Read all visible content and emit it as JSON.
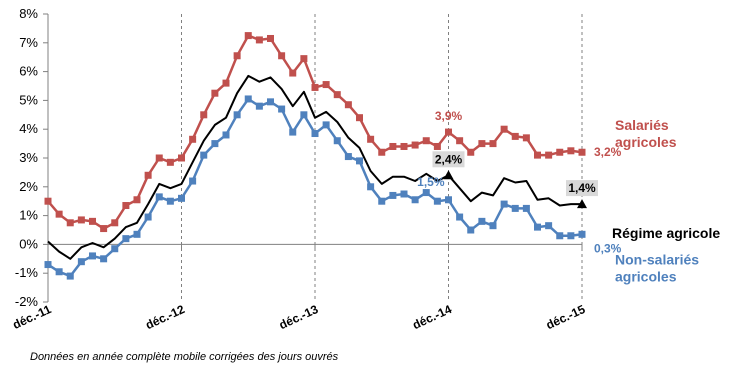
{
  "chart_data": {
    "type": "line",
    "ylim": [
      -2,
      8
    ],
    "y_ticks": [
      "8%",
      "7%",
      "6%",
      "5%",
      "4%",
      "3%",
      "2%",
      "1%",
      "0%",
      "-1%",
      "-2%"
    ],
    "y_tick_values": [
      8,
      7,
      6,
      5,
      4,
      3,
      2,
      1,
      0,
      -1,
      -2
    ],
    "x_ticks": [
      "déc.-11",
      "déc.-12",
      "déc.-13",
      "déc.-14",
      "déc.-15"
    ],
    "x_tick_index": [
      0,
      12,
      24,
      36,
      48
    ],
    "grid": "vertical dashed at x ticks",
    "series": [
      {
        "name": "Salariés agricoles",
        "color": "#c0504d",
        "marker": "square",
        "values": [
          1.5,
          1.05,
          0.75,
          0.85,
          0.8,
          0.55,
          0.75,
          1.35,
          1.55,
          2.4,
          3.0,
          2.85,
          3.0,
          3.65,
          4.5,
          5.25,
          5.6,
          6.55,
          7.25,
          7.1,
          7.15,
          6.55,
          5.95,
          6.45,
          5.45,
          5.55,
          5.2,
          4.85,
          4.4,
          3.65,
          3.2,
          3.4,
          3.4,
          3.45,
          3.6,
          3.4,
          3.9,
          3.6,
          3.2,
          3.5,
          3.5,
          4.0,
          3.75,
          3.7,
          3.1,
          3.1,
          3.2,
          3.25,
          3.2
        ]
      },
      {
        "name": "Régime agricole",
        "color": "#000000",
        "marker": "none",
        "values": [
          0.1,
          -0.25,
          -0.5,
          -0.1,
          0.05,
          -0.1,
          0.2,
          0.6,
          0.75,
          1.4,
          2.1,
          1.95,
          2.1,
          2.85,
          3.6,
          4.15,
          4.4,
          5.25,
          5.85,
          5.65,
          5.8,
          5.4,
          4.8,
          5.3,
          4.4,
          4.6,
          4.25,
          3.7,
          3.35,
          2.55,
          2.1,
          2.35,
          2.35,
          2.2,
          2.45,
          2.2,
          2.4,
          1.95,
          1.5,
          1.8,
          1.7,
          2.3,
          2.15,
          2.2,
          1.55,
          1.6,
          1.35,
          1.4,
          1.4
        ]
      },
      {
        "name": "Non-salariés agricoles",
        "color": "#4f81bd",
        "marker": "square",
        "values": [
          -0.7,
          -0.95,
          -1.1,
          -0.6,
          -0.4,
          -0.5,
          -0.15,
          0.2,
          0.35,
          0.95,
          1.65,
          1.5,
          1.6,
          2.2,
          3.1,
          3.5,
          3.8,
          4.5,
          5.05,
          4.8,
          4.95,
          4.7,
          3.9,
          4.5,
          3.85,
          4.15,
          3.6,
          3.05,
          2.9,
          2.0,
          1.5,
          1.7,
          1.75,
          1.55,
          1.8,
          1.5,
          1.55,
          0.95,
          0.5,
          0.8,
          0.65,
          1.4,
          1.25,
          1.25,
          0.6,
          0.65,
          0.3,
          0.3,
          0.35
        ]
      }
    ],
    "annotations": [
      {
        "text": "3,9%",
        "series": 0,
        "index": 36,
        "color": "#c0504d",
        "boxed": false,
        "pos": "above"
      },
      {
        "text": "2,4%",
        "series": 1,
        "index": 36,
        "color": "#000000",
        "boxed": true,
        "pos": "above"
      },
      {
        "text": "1,5%",
        "series": 2,
        "index": 36,
        "color": "#4f81bd",
        "boxed": false,
        "pos": "left"
      },
      {
        "text": "3,2%",
        "series": 0,
        "index": 48,
        "color": "#c0504d",
        "boxed": false,
        "pos": "right"
      },
      {
        "text": "1,4%",
        "series": 1,
        "index": 48,
        "color": "#000000",
        "boxed": true,
        "pos": "above"
      },
      {
        "text": "0,3%",
        "series": 2,
        "index": 48,
        "color": "#4f81bd",
        "boxed": false,
        "pos": "right-below"
      }
    ],
    "series_labels": [
      {
        "lines": [
          "Salariés",
          "agricoles"
        ],
        "color": "#c0504d"
      },
      {
        "lines": [
          "Régime agricole"
        ],
        "color": "#000000"
      },
      {
        "lines": [
          "Non-salariés",
          "agricoles"
        ],
        "color": "#4f81bd"
      }
    ],
    "footnote": "Données en année complète mobile corrigées des jours ouvrés"
  }
}
